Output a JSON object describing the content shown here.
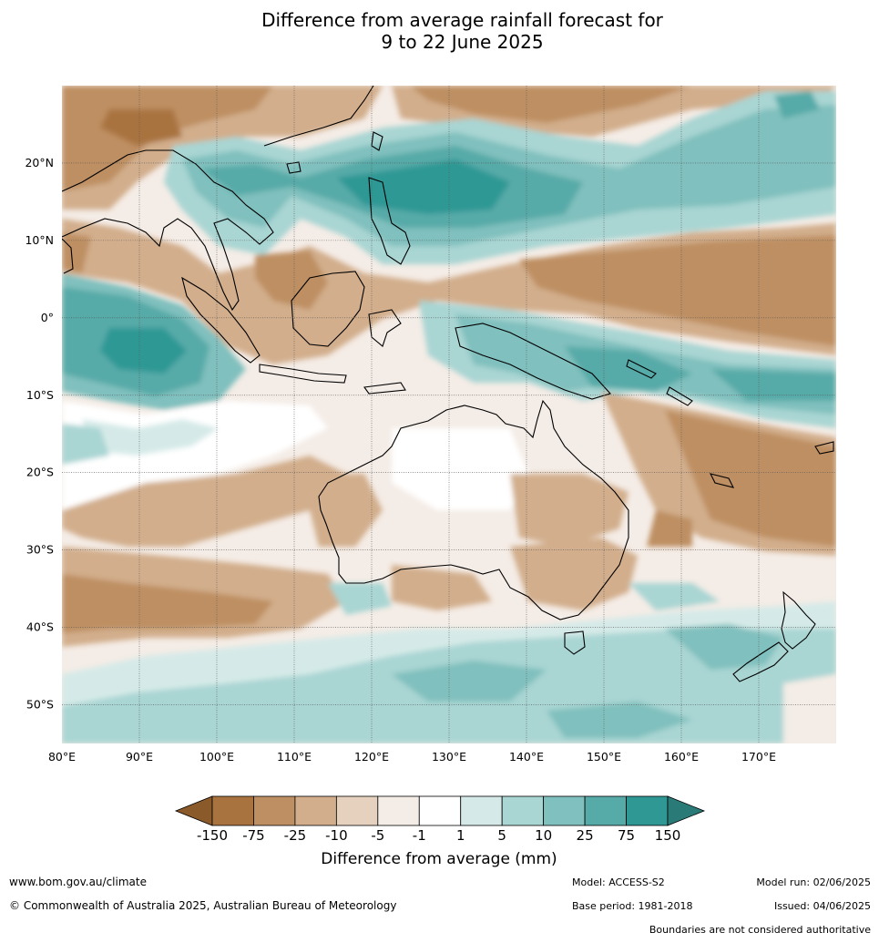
{
  "title": {
    "line1": "Difference from average rainfall forecast for",
    "line2": "9 to 22 June 2025"
  },
  "map": {
    "lat_labels": [
      "20°N",
      "10°N",
      "0°",
      "10°S",
      "20°S",
      "30°S",
      "40°S",
      "50°S"
    ],
    "lon_labels": [
      "80°E",
      "90°E",
      "100°E",
      "110°E",
      "120°E",
      "130°E",
      "140°E",
      "150°E",
      "160°E",
      "170°E"
    ],
    "lon_range": [
      80,
      180
    ],
    "lat_range": [
      -55,
      30
    ]
  },
  "colorbar": {
    "title": "Difference from average (mm)",
    "tick_labels": [
      "-150",
      "-75",
      "-25",
      "-10",
      "-5",
      "-1",
      "1",
      "5",
      "10",
      "25",
      "75",
      "150"
    ],
    "colors": [
      "#8b5a2b",
      "#a97340",
      "#be8f62",
      "#d2ae8c",
      "#e6d0be",
      "#f4ece6",
      "#ffffff",
      "#d5eae8",
      "#a9d5d3",
      "#80c0be",
      "#56aaa8",
      "#2f9894",
      "#2a7b77"
    ]
  },
  "footer": {
    "url": "www.bom.gov.au/climate",
    "copyright": "© Commonwealth of Australia 2025, Australian Bureau of Meteorology",
    "model": "Model: ACCESS-S2",
    "base_period": "Base period: 1981-2018",
    "model_run": "Model run: 02/06/2025",
    "issued": "Issued: 04/06/2025",
    "disclaimer": "Boundaries are not considered authoritative"
  }
}
